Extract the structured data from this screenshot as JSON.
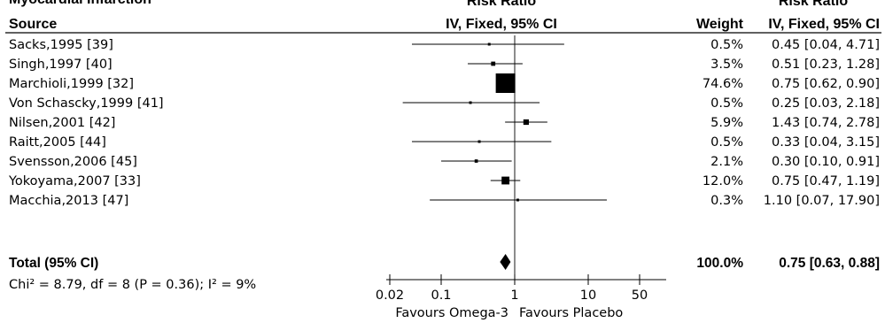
{
  "header": {
    "top_left": "Myocardial Infarction",
    "risk_ratio_1": "Risk Ratio",
    "risk_ratio_2": "Risk Ratio",
    "source": "Source",
    "method_1": "IV, Fixed, 95% CI",
    "weight": "Weight",
    "method_2": "IV, Fixed, 95% CI"
  },
  "total": {
    "label": "Total (95% CI)",
    "weight": "100.0%",
    "ci_text": "0.75 [0.63, 0.88]"
  },
  "heterogeneity": "Chi² = 8.79, df = 8 (P = 0.36); I² = 9%",
  "axis": {
    "favours_left": "Favours Omega-3",
    "favours_right": "Favours Placebo"
  },
  "chart_data": {
    "type": "forest",
    "scale": "log",
    "xlim": [
      0.02,
      50
    ],
    "ticks": [
      {
        "value": 0.02,
        "label": "0.02"
      },
      {
        "value": 0.1,
        "label": "0.1"
      },
      {
        "value": 1,
        "label": "1"
      },
      {
        "value": 10,
        "label": "10"
      },
      {
        "value": 50,
        "label": "50"
      }
    ],
    "studies": [
      {
        "source": "Sacks,1995 [39]",
        "rr": 0.45,
        "lower": 0.04,
        "upper": 4.71,
        "weight": 0.5,
        "weight_text": "0.5%",
        "ci_text": "0.45 [0.04, 4.71]"
      },
      {
        "source": "Singh,1997 [40]",
        "rr": 0.51,
        "lower": 0.23,
        "upper": 1.28,
        "weight": 3.5,
        "weight_text": "3.5%",
        "ci_text": "0.51 [0.23, 1.28]"
      },
      {
        "source": "Marchioli,1999 [32]",
        "rr": 0.75,
        "lower": 0.62,
        "upper": 0.9,
        "weight": 74.6,
        "weight_text": "74.6%",
        "ci_text": "0.75 [0.62, 0.90]"
      },
      {
        "source": "Von Schascky,1999 [41]",
        "rr": 0.25,
        "lower": 0.03,
        "upper": 2.18,
        "weight": 0.5,
        "weight_text": "0.5%",
        "ci_text": "0.25 [0.03, 2.18]"
      },
      {
        "source": "Nilsen,2001 [42]",
        "rr": 1.43,
        "lower": 0.74,
        "upper": 2.78,
        "weight": 5.9,
        "weight_text": "5.9%",
        "ci_text": "1.43 [0.74, 2.78]"
      },
      {
        "source": "Raitt,2005 [44]",
        "rr": 0.33,
        "lower": 0.04,
        "upper": 3.15,
        "weight": 0.5,
        "weight_text": "0.5%",
        "ci_text": "0.33 [0.04, 3.15]"
      },
      {
        "source": "Svensson,2006 [45]",
        "rr": 0.3,
        "lower": 0.1,
        "upper": 0.91,
        "weight": 2.1,
        "weight_text": "2.1%",
        "ci_text": "0.30 [0.10, 0.91]"
      },
      {
        "source": "Yokoyama,2007 [33]",
        "rr": 0.75,
        "lower": 0.47,
        "upper": 1.19,
        "weight": 12.0,
        "weight_text": "12.0%",
        "ci_text": "0.75 [0.47, 1.19]"
      },
      {
        "source": "Macchia,2013 [47]",
        "rr": 1.1,
        "lower": 0.07,
        "upper": 17.9,
        "weight": 0.3,
        "weight_text": "0.3%",
        "ci_text": "1.10 [0.07, 17.90]"
      }
    ],
    "pooled": {
      "rr": 0.75,
      "lower": 0.63,
      "upper": 0.88
    }
  }
}
